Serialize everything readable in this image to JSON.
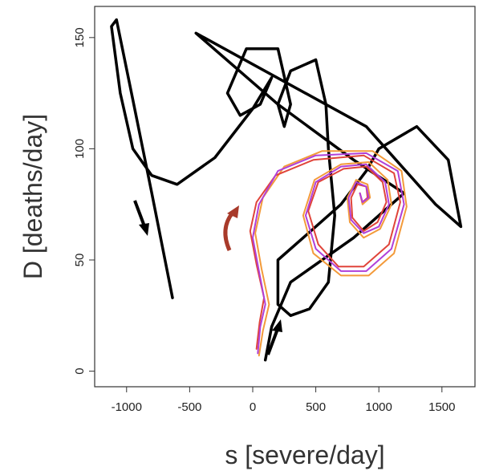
{
  "chart_data": {
    "type": "line",
    "xlabel": "s [severe/day]",
    "ylabel": "D [deaths/day]",
    "xlim": [
      -1253,
      1762
    ],
    "ylim": [
      -7,
      164
    ],
    "xticks": [
      -1000,
      -500,
      0,
      500,
      1000,
      1500
    ],
    "yticks": [
      0,
      50,
      100,
      150
    ],
    "series": [
      {
        "color": "#000000",
        "x": [
          -636,
          -800,
          -950,
          -1080,
          -1120,
          -1050,
          -950,
          -800,
          -600,
          -300,
          0,
          150,
          60,
          -100,
          -200,
          -50,
          200,
          300,
          250,
          200,
          300,
          500,
          580,
          600,
          650,
          600,
          450,
          300,
          200,
          200,
          400,
          700,
          900,
          1000,
          1300,
          1550,
          1650,
          1450,
          900,
          -450,
          200,
          800,
          1200,
          800,
          300,
          150,
          100
        ],
        "values": [
          33,
          80,
          122,
          158,
          155,
          125,
          100,
          88,
          84,
          96,
          118,
          132,
          120,
          115,
          125,
          145,
          145,
          120,
          110,
          120,
          135,
          140,
          120,
          100,
          70,
          40,
          28,
          25,
          30,
          50,
          60,
          75,
          90,
          100,
          110,
          95,
          65,
          75,
          110,
          152,
          120,
          95,
          80,
          60,
          40,
          20,
          5
        ]
      },
      {
        "color": "#f39a3a",
        "x": [
          50,
          80,
          130,
          70,
          20,
          80,
          250,
          550,
          950,
          1180,
          1220,
          1120,
          920,
          700,
          480,
          400,
          490,
          700,
          920,
          1070,
          1100,
          1010,
          880,
          770,
          750,
          820,
          910,
          930,
          870,
          850
        ],
        "values": [
          7,
          18,
          30,
          46,
          62,
          78,
          92,
          99,
          99,
          90,
          74,
          53,
          43,
          43,
          53,
          70,
          86,
          93,
          94,
          86,
          75,
          64,
          60,
          67,
          78,
          86,
          84,
          78,
          75,
          80
        ]
      },
      {
        "color": "#e0443a",
        "x": [
          30,
          55,
          90,
          30,
          -20,
          30,
          180,
          480,
          880,
          1120,
          1170,
          1080,
          880,
          680,
          520,
          440,
          520,
          720,
          900,
          1030,
          1060,
          990,
          880,
          790,
          780,
          830,
          900,
          910,
          870,
          850
        ],
        "values": [
          10,
          22,
          33,
          48,
          63,
          76,
          88,
          95,
          97,
          89,
          76,
          57,
          47,
          47,
          57,
          72,
          85,
          91,
          92,
          85,
          76,
          67,
          63,
          69,
          78,
          84,
          83,
          78,
          76,
          80
        ]
      },
      {
        "color": "#b040d8",
        "x": [
          40,
          60,
          100,
          50,
          0,
          50,
          200,
          500,
          900,
          1150,
          1200,
          1100,
          900,
          700,
          500,
          420,
          500,
          700,
          900,
          1050,
          1080,
          1000,
          880,
          780,
          760,
          820,
          900,
          920,
          870,
          850
        ],
        "values": [
          8,
          20,
          30,
          45,
          60,
          75,
          90,
          97,
          98,
          90,
          75,
          55,
          45,
          45,
          55,
          70,
          85,
          92,
          93,
          85,
          75,
          65,
          62,
          68,
          78,
          85,
          83,
          78,
          76,
          80
        ]
      }
    ]
  }
}
